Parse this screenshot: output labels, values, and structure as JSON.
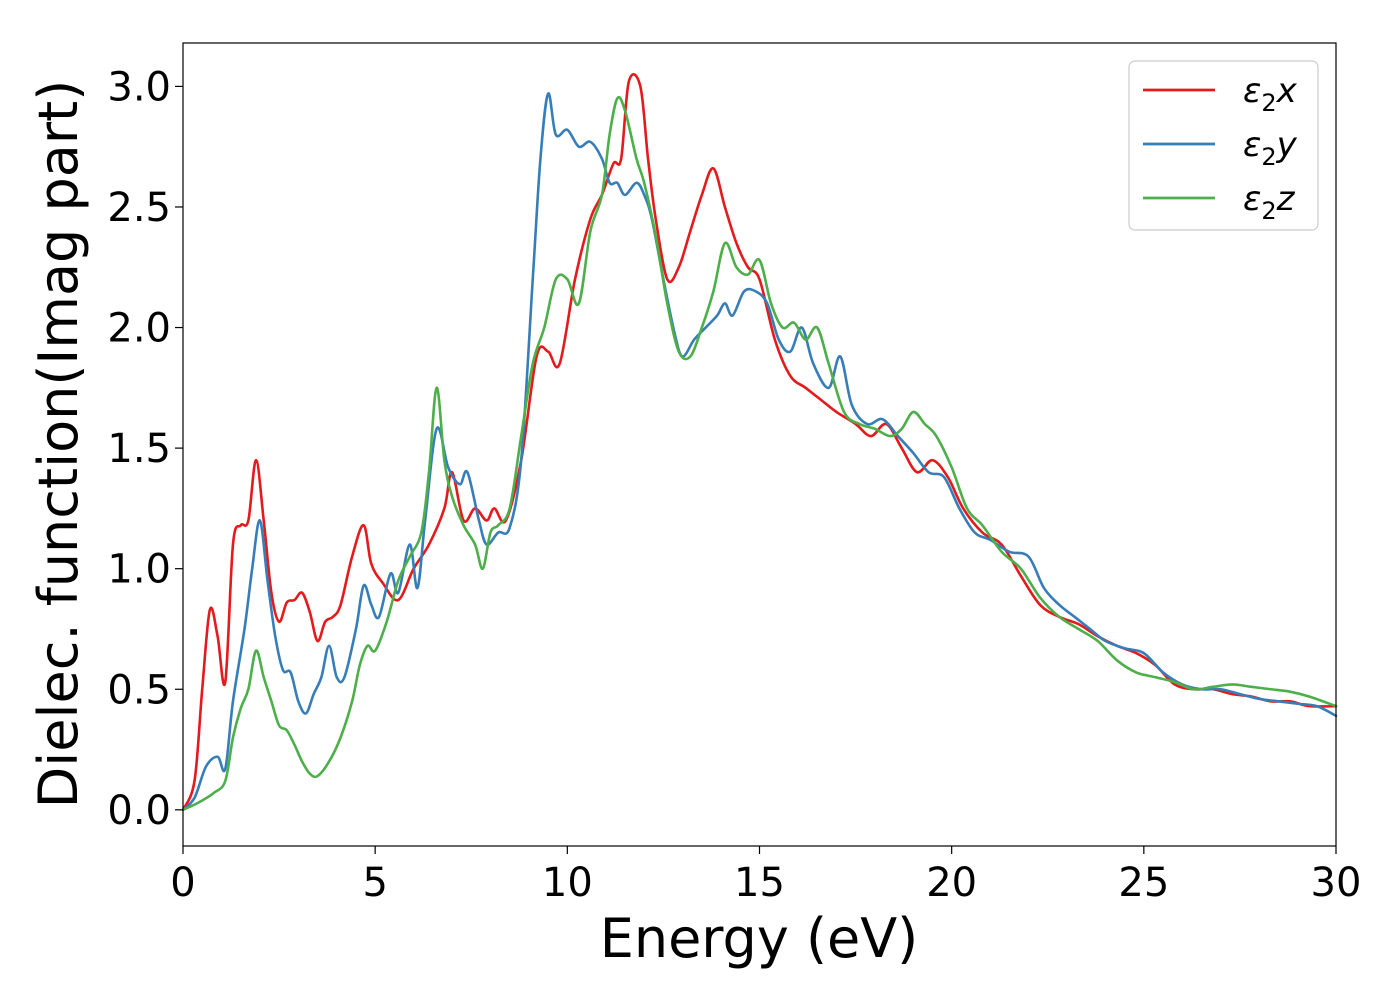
{
  "chart_data": {
    "type": "line",
    "title": "",
    "xlabel": "Energy (eV)",
    "ylabel": "Dielec. function(Imag part)",
    "xlim": [
      0,
      30
    ],
    "ylim": [
      -0.15,
      3.18
    ],
    "xticks": [
      0,
      5,
      10,
      15,
      20,
      25,
      30
    ],
    "xtick_labels": [
      "0",
      "5",
      "10",
      "15",
      "20",
      "25",
      "30"
    ],
    "yticks": [
      0.0,
      0.5,
      1.0,
      1.5,
      2.0,
      2.5,
      3.0
    ],
    "ytick_labels": [
      "0.0",
      "0.5",
      "1.0",
      "1.5",
      "2.0",
      "2.5",
      "3.0"
    ],
    "grid": false,
    "legend": {
      "position": "top-right"
    },
    "series": [
      {
        "name_base": "ε",
        "name_sub": "2",
        "name_suffix": "x",
        "color": "#e41a1c",
        "points": [
          [
            0,
            0
          ],
          [
            0.3,
            0.12
          ],
          [
            0.5,
            0.5
          ],
          [
            0.7,
            0.83
          ],
          [
            0.9,
            0.72
          ],
          [
            1.1,
            0.53
          ],
          [
            1.3,
            1.1
          ],
          [
            1.5,
            1.18
          ],
          [
            1.7,
            1.2
          ],
          [
            1.9,
            1.45
          ],
          [
            2.1,
            1.2
          ],
          [
            2.3,
            0.9
          ],
          [
            2.5,
            0.78
          ],
          [
            2.7,
            0.86
          ],
          [
            2.9,
            0.87
          ],
          [
            3.1,
            0.9
          ],
          [
            3.3,
            0.82
          ],
          [
            3.5,
            0.7
          ],
          [
            3.7,
            0.78
          ],
          [
            3.9,
            0.8
          ],
          [
            4.1,
            0.85
          ],
          [
            4.4,
            1.05
          ],
          [
            4.7,
            1.18
          ],
          [
            4.9,
            1.02
          ],
          [
            5.2,
            0.94
          ],
          [
            5.6,
            0.87
          ],
          [
            6.0,
            1.0
          ],
          [
            6.4,
            1.1
          ],
          [
            6.8,
            1.25
          ],
          [
            7.0,
            1.4
          ],
          [
            7.3,
            1.2
          ],
          [
            7.6,
            1.25
          ],
          [
            7.9,
            1.2
          ],
          [
            8.1,
            1.25
          ],
          [
            8.4,
            1.2
          ],
          [
            8.8,
            1.45
          ],
          [
            9.2,
            1.88
          ],
          [
            9.5,
            1.9
          ],
          [
            9.8,
            1.85
          ],
          [
            10.2,
            2.2
          ],
          [
            10.6,
            2.45
          ],
          [
            10.9,
            2.55
          ],
          [
            11.2,
            2.68
          ],
          [
            11.4,
            2.7
          ],
          [
            11.6,
            3.02
          ],
          [
            11.9,
            3.0
          ],
          [
            12.1,
            2.7
          ],
          [
            12.3,
            2.45
          ],
          [
            12.6,
            2.2
          ],
          [
            12.9,
            2.25
          ],
          [
            13.2,
            2.4
          ],
          [
            13.5,
            2.55
          ],
          [
            13.8,
            2.66
          ],
          [
            14.1,
            2.5
          ],
          [
            14.4,
            2.35
          ],
          [
            14.7,
            2.25
          ],
          [
            15.0,
            2.2
          ],
          [
            15.4,
            1.95
          ],
          [
            15.8,
            1.8
          ],
          [
            16.2,
            1.75
          ],
          [
            16.6,
            1.7
          ],
          [
            17.0,
            1.65
          ],
          [
            17.5,
            1.6
          ],
          [
            17.9,
            1.55
          ],
          [
            18.3,
            1.6
          ],
          [
            18.7,
            1.5
          ],
          [
            19.1,
            1.4
          ],
          [
            19.5,
            1.45
          ],
          [
            19.9,
            1.38
          ],
          [
            20.3,
            1.25
          ],
          [
            20.8,
            1.15
          ],
          [
            21.3,
            1.1
          ],
          [
            21.8,
            0.97
          ],
          [
            22.3,
            0.85
          ],
          [
            22.8,
            0.8
          ],
          [
            23.3,
            0.77
          ],
          [
            23.8,
            0.72
          ],
          [
            24.3,
            0.68
          ],
          [
            24.8,
            0.65
          ],
          [
            25.3,
            0.6
          ],
          [
            25.8,
            0.52
          ],
          [
            26.3,
            0.5
          ],
          [
            26.8,
            0.5
          ],
          [
            27.3,
            0.48
          ],
          [
            27.8,
            0.47
          ],
          [
            28.3,
            0.45
          ],
          [
            28.8,
            0.45
          ],
          [
            29.3,
            0.43
          ],
          [
            30.0,
            0.43
          ]
        ]
      },
      {
        "name_base": "ε",
        "name_sub": "2",
        "name_suffix": "y",
        "color": "#377eb8",
        "points": [
          [
            0,
            0
          ],
          [
            0.3,
            0.05
          ],
          [
            0.6,
            0.18
          ],
          [
            0.9,
            0.22
          ],
          [
            1.1,
            0.17
          ],
          [
            1.3,
            0.45
          ],
          [
            1.6,
            0.75
          ],
          [
            1.8,
            1.0
          ],
          [
            2.0,
            1.2
          ],
          [
            2.2,
            0.95
          ],
          [
            2.4,
            0.72
          ],
          [
            2.6,
            0.58
          ],
          [
            2.8,
            0.57
          ],
          [
            3.0,
            0.45
          ],
          [
            3.2,
            0.4
          ],
          [
            3.4,
            0.48
          ],
          [
            3.6,
            0.55
          ],
          [
            3.8,
            0.68
          ],
          [
            4.0,
            0.55
          ],
          [
            4.2,
            0.55
          ],
          [
            4.5,
            0.75
          ],
          [
            4.7,
            0.93
          ],
          [
            4.9,
            0.85
          ],
          [
            5.1,
            0.8
          ],
          [
            5.4,
            0.98
          ],
          [
            5.6,
            0.9
          ],
          [
            5.9,
            1.1
          ],
          [
            6.1,
            0.92
          ],
          [
            6.3,
            1.2
          ],
          [
            6.6,
            1.58
          ],
          [
            6.9,
            1.42
          ],
          [
            7.2,
            1.35
          ],
          [
            7.4,
            1.4
          ],
          [
            7.7,
            1.2
          ],
          [
            7.9,
            1.1
          ],
          [
            8.2,
            1.15
          ],
          [
            8.5,
            1.17
          ],
          [
            8.8,
            1.45
          ],
          [
            9.1,
            2.2
          ],
          [
            9.3,
            2.7
          ],
          [
            9.5,
            2.97
          ],
          [
            9.7,
            2.8
          ],
          [
            10.0,
            2.82
          ],
          [
            10.3,
            2.75
          ],
          [
            10.6,
            2.77
          ],
          [
            10.9,
            2.7
          ],
          [
            11.1,
            2.6
          ],
          [
            11.3,
            2.6
          ],
          [
            11.5,
            2.55
          ],
          [
            11.8,
            2.6
          ],
          [
            12.0,
            2.55
          ],
          [
            12.2,
            2.45
          ],
          [
            12.5,
            2.2
          ],
          [
            12.8,
            1.97
          ],
          [
            13.0,
            1.88
          ],
          [
            13.3,
            1.95
          ],
          [
            13.6,
            2.0
          ],
          [
            13.9,
            2.05
          ],
          [
            14.1,
            2.1
          ],
          [
            14.3,
            2.05
          ],
          [
            14.6,
            2.15
          ],
          [
            14.9,
            2.15
          ],
          [
            15.2,
            2.1
          ],
          [
            15.5,
            1.95
          ],
          [
            15.8,
            1.9
          ],
          [
            16.1,
            2.0
          ],
          [
            16.4,
            1.85
          ],
          [
            16.8,
            1.75
          ],
          [
            17.1,
            1.88
          ],
          [
            17.4,
            1.68
          ],
          [
            17.8,
            1.6
          ],
          [
            18.2,
            1.62
          ],
          [
            18.6,
            1.55
          ],
          [
            19.0,
            1.48
          ],
          [
            19.4,
            1.4
          ],
          [
            19.8,
            1.38
          ],
          [
            20.2,
            1.25
          ],
          [
            20.6,
            1.15
          ],
          [
            21.0,
            1.12
          ],
          [
            21.5,
            1.07
          ],
          [
            22.0,
            1.05
          ],
          [
            22.4,
            0.92
          ],
          [
            22.8,
            0.85
          ],
          [
            23.2,
            0.8
          ],
          [
            23.6,
            0.75
          ],
          [
            24.0,
            0.7
          ],
          [
            24.5,
            0.67
          ],
          [
            25.0,
            0.65
          ],
          [
            25.5,
            0.57
          ],
          [
            26.0,
            0.52
          ],
          [
            26.5,
            0.5
          ],
          [
            27.0,
            0.5
          ],
          [
            27.5,
            0.48
          ],
          [
            28.0,
            0.46
          ],
          [
            28.5,
            0.45
          ],
          [
            29.0,
            0.44
          ],
          [
            29.5,
            0.43
          ],
          [
            30.0,
            0.39
          ]
        ]
      },
      {
        "name_base": "ε",
        "name_sub": "2",
        "name_suffix": "z",
        "color": "#4daf4a",
        "points": [
          [
            0,
            0
          ],
          [
            0.4,
            0.03
          ],
          [
            0.8,
            0.07
          ],
          [
            1.1,
            0.12
          ],
          [
            1.3,
            0.3
          ],
          [
            1.5,
            0.42
          ],
          [
            1.7,
            0.5
          ],
          [
            1.9,
            0.66
          ],
          [
            2.1,
            0.55
          ],
          [
            2.3,
            0.45
          ],
          [
            2.5,
            0.35
          ],
          [
            2.7,
            0.33
          ],
          [
            2.9,
            0.27
          ],
          [
            3.1,
            0.2
          ],
          [
            3.3,
            0.15
          ],
          [
            3.5,
            0.14
          ],
          [
            3.8,
            0.2
          ],
          [
            4.1,
            0.3
          ],
          [
            4.4,
            0.45
          ],
          [
            4.6,
            0.6
          ],
          [
            4.8,
            0.68
          ],
          [
            5.0,
            0.66
          ],
          [
            5.3,
            0.78
          ],
          [
            5.6,
            0.95
          ],
          [
            5.9,
            1.05
          ],
          [
            6.2,
            1.15
          ],
          [
            6.4,
            1.4
          ],
          [
            6.6,
            1.75
          ],
          [
            6.8,
            1.45
          ],
          [
            7.0,
            1.3
          ],
          [
            7.3,
            1.18
          ],
          [
            7.6,
            1.1
          ],
          [
            7.8,
            1.0
          ],
          [
            8.0,
            1.15
          ],
          [
            8.2,
            1.18
          ],
          [
            8.5,
            1.25
          ],
          [
            8.8,
            1.55
          ],
          [
            9.1,
            1.85
          ],
          [
            9.4,
            2.0
          ],
          [
            9.7,
            2.2
          ],
          [
            10.0,
            2.2
          ],
          [
            10.3,
            2.1
          ],
          [
            10.6,
            2.4
          ],
          [
            10.9,
            2.55
          ],
          [
            11.1,
            2.8
          ],
          [
            11.3,
            2.95
          ],
          [
            11.5,
            2.9
          ],
          [
            11.8,
            2.7
          ],
          [
            12.0,
            2.6
          ],
          [
            12.3,
            2.38
          ],
          [
            12.6,
            2.1
          ],
          [
            12.9,
            1.9
          ],
          [
            13.2,
            1.88
          ],
          [
            13.5,
            2.0
          ],
          [
            13.8,
            2.15
          ],
          [
            14.1,
            2.35
          ],
          [
            14.4,
            2.25
          ],
          [
            14.7,
            2.22
          ],
          [
            15.0,
            2.28
          ],
          [
            15.3,
            2.1
          ],
          [
            15.6,
            2.0
          ],
          [
            15.9,
            2.02
          ],
          [
            16.2,
            1.95
          ],
          [
            16.5,
            2.0
          ],
          [
            16.8,
            1.85
          ],
          [
            17.2,
            1.65
          ],
          [
            17.6,
            1.6
          ],
          [
            18.0,
            1.58
          ],
          [
            18.4,
            1.55
          ],
          [
            18.7,
            1.58
          ],
          [
            19.0,
            1.65
          ],
          [
            19.3,
            1.6
          ],
          [
            19.6,
            1.55
          ],
          [
            20.0,
            1.42
          ],
          [
            20.4,
            1.25
          ],
          [
            20.8,
            1.18
          ],
          [
            21.3,
            1.07
          ],
          [
            21.8,
            1.0
          ],
          [
            22.3,
            0.88
          ],
          [
            22.8,
            0.8
          ],
          [
            23.3,
            0.75
          ],
          [
            23.8,
            0.7
          ],
          [
            24.3,
            0.62
          ],
          [
            24.8,
            0.57
          ],
          [
            25.3,
            0.55
          ],
          [
            25.8,
            0.53
          ],
          [
            26.3,
            0.5
          ],
          [
            26.8,
            0.51
          ],
          [
            27.3,
            0.52
          ],
          [
            27.8,
            0.51
          ],
          [
            28.3,
            0.5
          ],
          [
            28.8,
            0.49
          ],
          [
            29.3,
            0.47
          ],
          [
            30.0,
            0.43
          ]
        ]
      }
    ]
  }
}
